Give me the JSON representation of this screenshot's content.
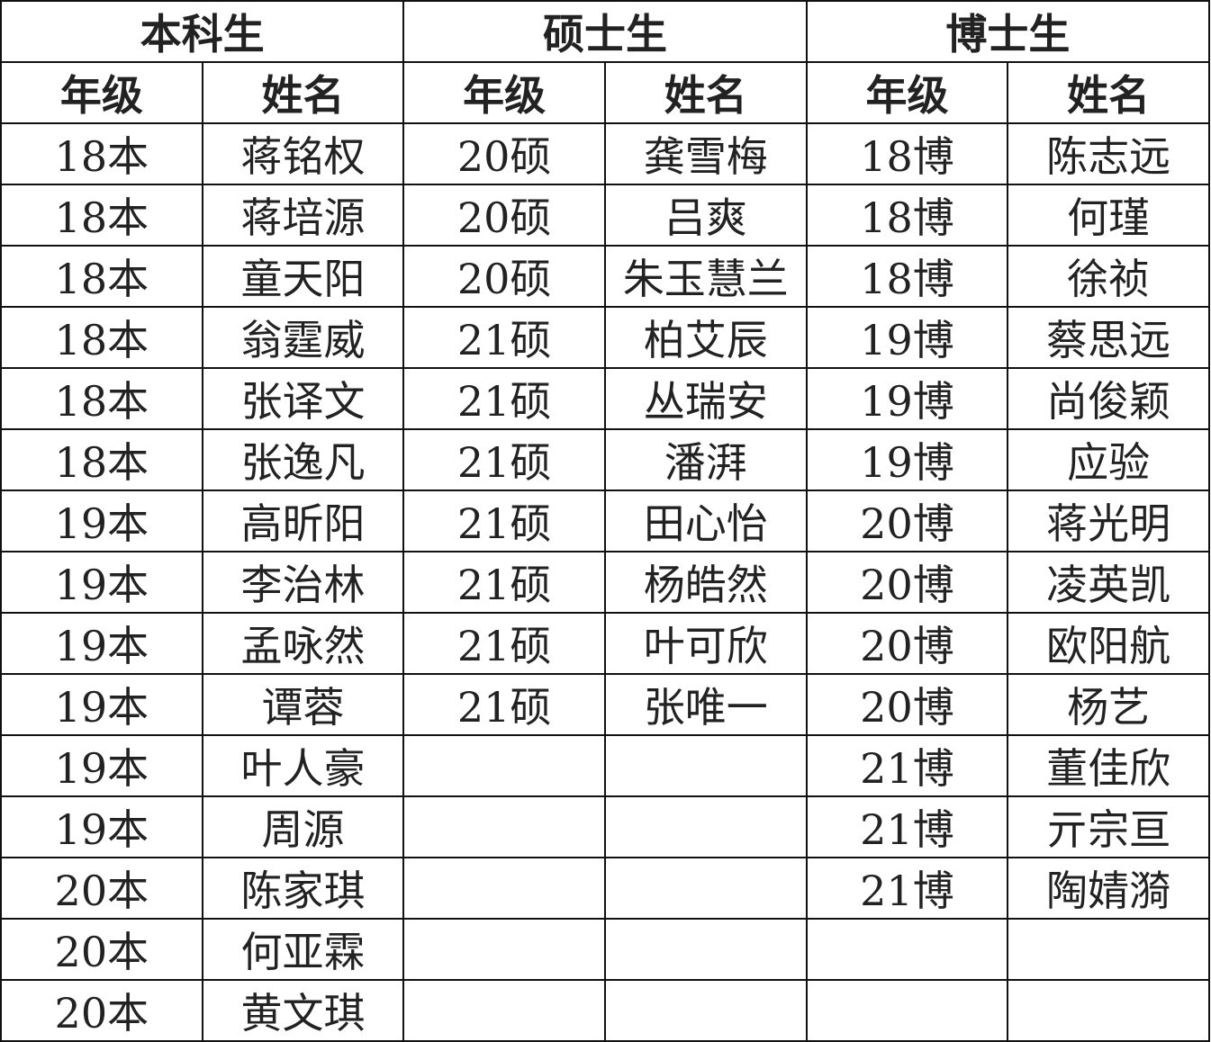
{
  "groups": [
    "本科生",
    "硕士生",
    "博士生"
  ],
  "subheaders": {
    "grade": "年级",
    "name": "姓名"
  },
  "undergrad": [
    [
      "18本",
      "蒋铭权"
    ],
    [
      "18本",
      "蒋培源"
    ],
    [
      "18本",
      "童天阳"
    ],
    [
      "18本",
      "翁霆威"
    ],
    [
      "18本",
      "张译文"
    ],
    [
      "18本",
      "张逸凡"
    ],
    [
      "19本",
      "高昕阳"
    ],
    [
      "19本",
      "李治林"
    ],
    [
      "19本",
      "孟咏然"
    ],
    [
      "19本",
      "谭蓉"
    ],
    [
      "19本",
      "叶人豪"
    ],
    [
      "19本",
      "周源"
    ],
    [
      "20本",
      "陈家琪"
    ],
    [
      "20本",
      "何亚霖"
    ],
    [
      "20本",
      "黄文琪"
    ]
  ],
  "master": [
    [
      "20硕",
      "龚雪梅"
    ],
    [
      "20硕",
      "吕爽"
    ],
    [
      "20硕",
      "朱玉慧兰"
    ],
    [
      "21硕",
      "柏艾辰"
    ],
    [
      "21硕",
      "丛瑞安"
    ],
    [
      "21硕",
      "潘湃"
    ],
    [
      "21硕",
      "田心怡"
    ],
    [
      "21硕",
      "杨皓然"
    ],
    [
      "21硕",
      "叶可欣"
    ],
    [
      "21硕",
      "张唯一"
    ]
  ],
  "phd": [
    [
      "18博",
      "陈志远"
    ],
    [
      "18博",
      "何瑾"
    ],
    [
      "18博",
      "徐祯"
    ],
    [
      "19博",
      "蔡思远"
    ],
    [
      "19博",
      "尚俊颖"
    ],
    [
      "19博",
      "应验"
    ],
    [
      "20博",
      "蒋光明"
    ],
    [
      "20博",
      "凌英凯"
    ],
    [
      "20博",
      "欧阳航"
    ],
    [
      "20博",
      "杨艺"
    ],
    [
      "21博",
      "董佳欣"
    ],
    [
      "21博",
      "亓宗亘"
    ],
    [
      "21博",
      "陶婧漪"
    ]
  ]
}
